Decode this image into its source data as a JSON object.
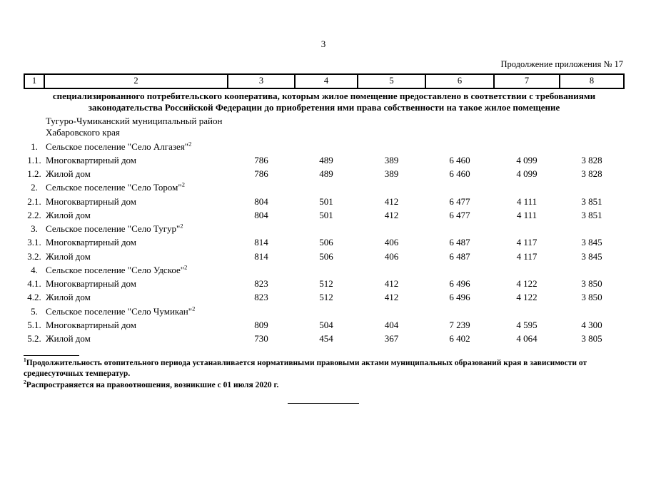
{
  "page": {
    "number": "3",
    "continuation": "Продолжение приложения № 17"
  },
  "table": {
    "column_numbers": [
      "1",
      "2",
      "3",
      "4",
      "5",
      "6",
      "7",
      "8"
    ],
    "spanning_text": "специализированного потребительского кооператива, которым жилое помещение предоставлено в соответствии с требованиями законодательства Российской Федерации до приобретения ими права собственности на такое жилое помещение",
    "district": "Тугуро-Чумиканский муниципальный район Хабаровского края",
    "groups": [
      {
        "num": "1.",
        "name": "Сельское поселение \"Село Алгазея\"",
        "footnote_ref": "2",
        "rows": [
          {
            "num": "1.1.",
            "name": "Многоквартирный дом",
            "values": [
              "786",
              "489",
              "389",
              "6 460",
              "4 099",
              "3 828"
            ]
          },
          {
            "num": "1.2.",
            "name": "Жилой дом",
            "values": [
              "786",
              "489",
              "389",
              "6 460",
              "4 099",
              "3 828"
            ]
          }
        ]
      },
      {
        "num": "2.",
        "name": "Сельское поселение \"Село Тором\"",
        "footnote_ref": "2",
        "rows": [
          {
            "num": "2.1.",
            "name": "Многоквартирный дом",
            "values": [
              "804",
              "501",
              "412",
              "6 477",
              "4 111",
              "3 851"
            ]
          },
          {
            "num": "2.2.",
            "name": "Жилой дом",
            "values": [
              "804",
              "501",
              "412",
              "6 477",
              "4 111",
              "3 851"
            ]
          }
        ]
      },
      {
        "num": "3.",
        "name": "Сельское поселение \"Село Тугур\"",
        "footnote_ref": "2",
        "rows": [
          {
            "num": "3.1.",
            "name": "Многоквартирный дом",
            "values": [
              "814",
              "506",
              "406",
              "6 487",
              "4 117",
              "3 845"
            ]
          },
          {
            "num": "3.2.",
            "name": "Жилой дом",
            "values": [
              "814",
              "506",
              "406",
              "6 487",
              "4 117",
              "3 845"
            ]
          }
        ]
      },
      {
        "num": "4.",
        "name": "Сельское поселение \"Село Удское\"",
        "footnote_ref": "2",
        "rows": [
          {
            "num": "4.1.",
            "name": "Многоквартирный дом",
            "values": [
              "823",
              "512",
              "412",
              "6 496",
              "4 122",
              "3 850"
            ]
          },
          {
            "num": "4.2.",
            "name": "Жилой дом",
            "values": [
              "823",
              "512",
              "412",
              "6 496",
              "4 122",
              "3 850"
            ]
          }
        ]
      },
      {
        "num": "5.",
        "name": "Сельское поселение \"Село Чумикан\"",
        "footnote_ref": "2",
        "rows": [
          {
            "num": "5.1.",
            "name": "Многоквартирный дом",
            "values": [
              "809",
              "504",
              "404",
              "7 239",
              "4 595",
              "4 300"
            ]
          },
          {
            "num": "5.2.",
            "name": "Жилой дом",
            "values": [
              "730",
              "454",
              "367",
              "6 402",
              "4 064",
              "3 805"
            ]
          }
        ]
      }
    ]
  },
  "footnotes": [
    {
      "ref": "1",
      "text": "Продолжительность отопительного периода устанавливается нормативными правовыми актами муниципальных образований края в зависимости от среднесуточных температур."
    },
    {
      "ref": "2",
      "text": "Распространяется на правоотношения, возникшие с 01 июля 2020 г."
    }
  ]
}
